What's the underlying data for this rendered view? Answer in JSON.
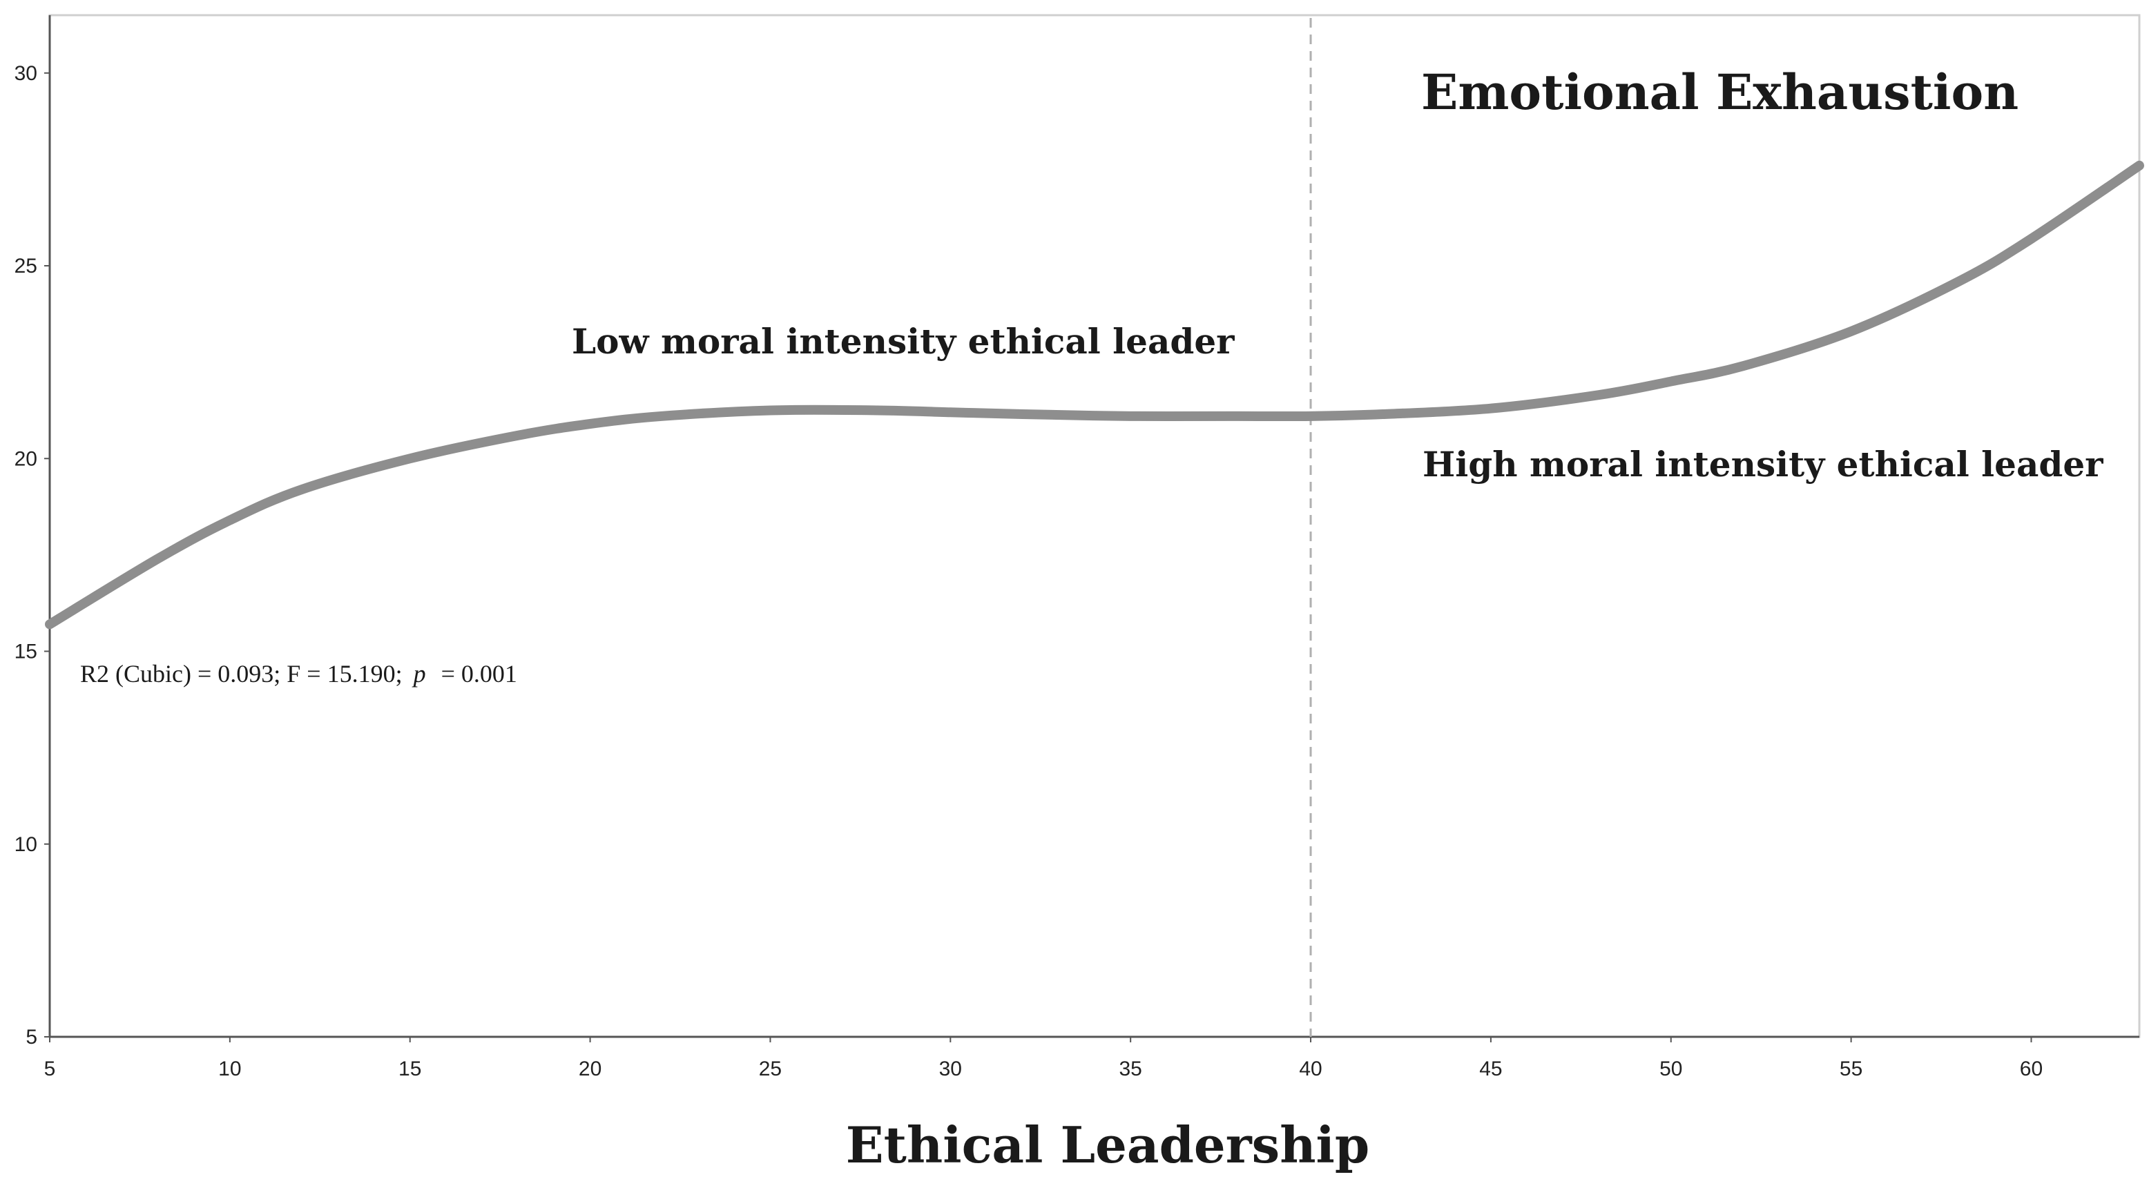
{
  "chart_data": {
    "type": "line",
    "title": "",
    "xlabel": "Ethical Leadership",
    "ylabel": "",
    "xlim": [
      5,
      63
    ],
    "ylim": [
      5,
      31.5
    ],
    "x_ticks": [
      "5",
      "10",
      "15",
      "20",
      "25",
      "30",
      "35",
      "40",
      "45",
      "50",
      "55",
      "60"
    ],
    "y_ticks": [
      "5",
      "10",
      "15",
      "20",
      "25",
      "30"
    ],
    "grid": false,
    "series": [
      {
        "name": "",
        "color": "#8e8e8e",
        "x": [
          5,
          8,
          10,
          12,
          15,
          18,
          20,
          22,
          25,
          28,
          30,
          32,
          35,
          38,
          40,
          42,
          45,
          48,
          50,
          52,
          55,
          58,
          60,
          63
        ],
        "y": [
          15.7,
          17.4,
          18.4,
          19.2,
          20.0,
          20.6,
          20.9,
          21.1,
          21.25,
          21.25,
          21.2,
          21.15,
          21.1,
          21.1,
          21.1,
          21.15,
          21.3,
          21.65,
          22.0,
          22.4,
          23.3,
          24.6,
          25.7,
          27.6
        ]
      }
    ],
    "reference_line": {
      "x": 40,
      "style": "dashed",
      "color": "#b0b0b0"
    },
    "annotations": {
      "series_title": "Emotional Exhaustion",
      "low_region": "Low moral intensity ethical leader",
      "high_region": "High moral intensity ethical leader",
      "stats_prefix": "R2 (Cubic) = 0.093; F = 15.190;",
      "stats_p": "p",
      "stats_suffix": "= 0.001"
    }
  }
}
